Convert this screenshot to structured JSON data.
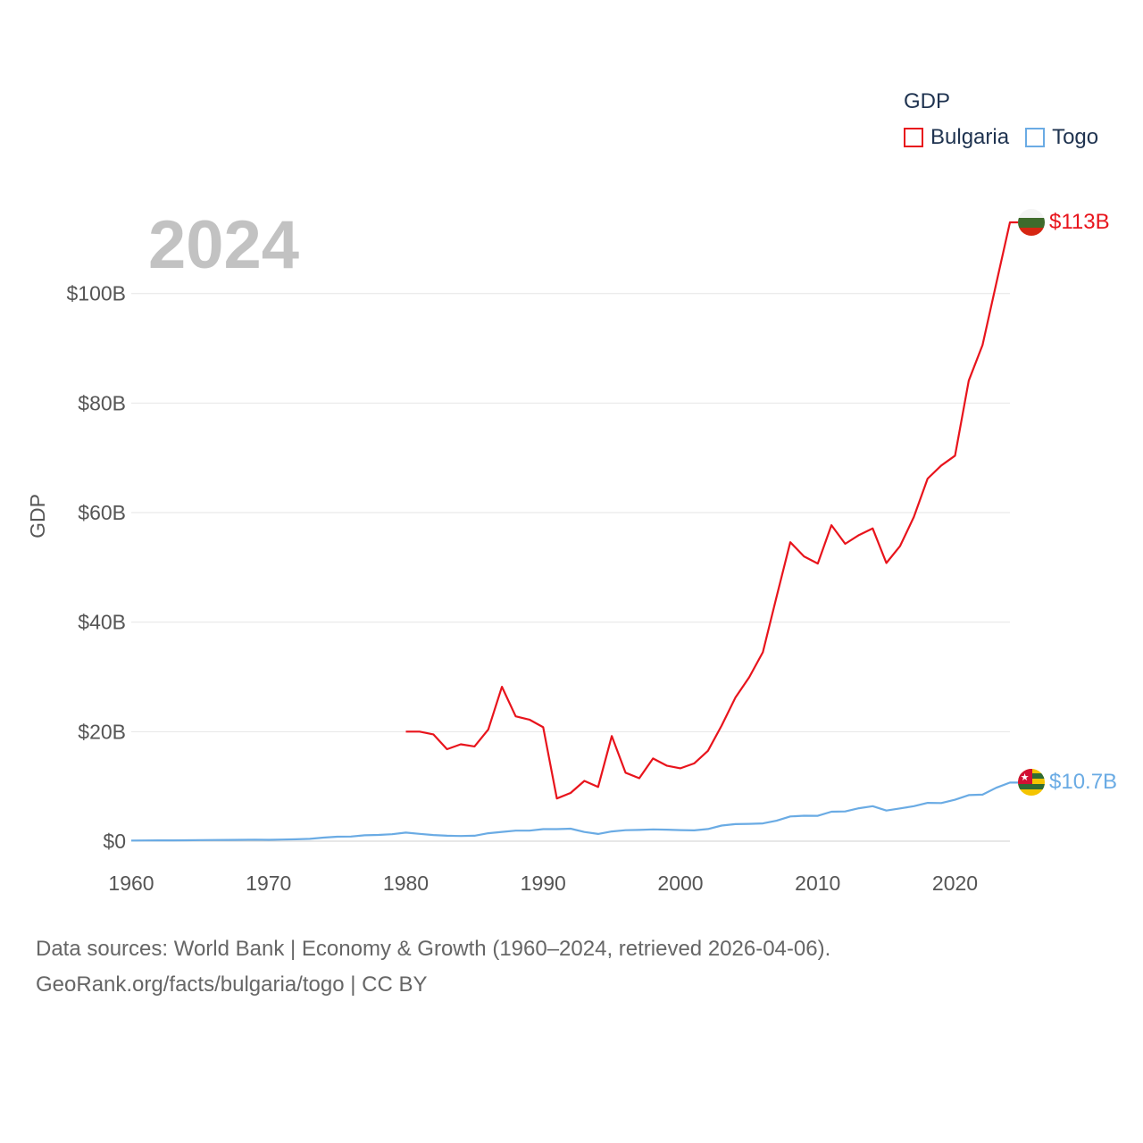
{
  "chart_data": {
    "type": "line",
    "title": "",
    "year_label": "2024",
    "xlabel": "",
    "ylabel": "GDP",
    "xlim": [
      1960,
      2024
    ],
    "ylim": [
      0,
      113
    ],
    "x_ticks": [
      1960,
      1970,
      1980,
      1990,
      2000,
      2010,
      2020
    ],
    "y_ticks": [
      0,
      20,
      40,
      60,
      80,
      100
    ],
    "y_tick_labels": [
      "$0",
      "$20B",
      "$40B",
      "$60B",
      "$80B",
      "$100B"
    ],
    "unit": "billion USD",
    "legend": {
      "title": "GDP",
      "placement": "top-right"
    },
    "series": [
      {
        "name": "Bulgaria",
        "color": "#e8141c",
        "end_label": "$113B",
        "flag_icon": "bulgaria-flag-icon",
        "x": [
          1980,
          1981,
          1982,
          1983,
          1984,
          1985,
          1986,
          1987,
          1988,
          1989,
          1990,
          1991,
          1992,
          1993,
          1994,
          1995,
          1996,
          1997,
          1998,
          1999,
          2000,
          2001,
          2002,
          2003,
          2004,
          2005,
          2006,
          2007,
          2008,
          2009,
          2010,
          2011,
          2012,
          2013,
          2014,
          2015,
          2016,
          2017,
          2018,
          2019,
          2020,
          2021,
          2022,
          2023,
          2024
        ],
        "values": [
          20.0,
          20.0,
          19.5,
          16.8,
          17.7,
          17.3,
          20.4,
          28.2,
          22.8,
          22.2,
          20.8,
          7.8,
          8.8,
          11.0,
          9.9,
          19.2,
          12.5,
          11.5,
          15.1,
          13.8,
          13.3,
          14.2,
          16.5,
          21.1,
          26.2,
          29.9,
          34.5,
          44.6,
          54.6,
          52.0,
          50.7,
          57.7,
          54.3,
          55.9,
          57.1,
          50.8,
          53.9,
          59.2,
          66.2,
          68.6,
          70.4,
          84.1,
          90.6,
          101.8,
          113.0
        ]
      },
      {
        "name": "Togo",
        "color": "#6aabe4",
        "end_label": "$10.7B",
        "flag_icon": "togo-flag-icon",
        "x": [
          1960,
          1961,
          1962,
          1963,
          1964,
          1965,
          1966,
          1967,
          1968,
          1969,
          1970,
          1971,
          1972,
          1973,
          1974,
          1975,
          1976,
          1977,
          1978,
          1979,
          1980,
          1981,
          1982,
          1983,
          1984,
          1985,
          1986,
          1987,
          1988,
          1989,
          1990,
          1991,
          1992,
          1993,
          1994,
          1995,
          1996,
          1997,
          1998,
          1999,
          2000,
          2001,
          2002,
          2003,
          2004,
          2005,
          2006,
          2007,
          2008,
          2009,
          2010,
          2011,
          2012,
          2013,
          2014,
          2015,
          2016,
          2017,
          2018,
          2019,
          2020,
          2021,
          2022,
          2023,
          2024
        ],
        "values": [
          0.12,
          0.13,
          0.14,
          0.15,
          0.17,
          0.19,
          0.21,
          0.23,
          0.25,
          0.27,
          0.25,
          0.29,
          0.35,
          0.42,
          0.65,
          0.81,
          0.85,
          1.08,
          1.14,
          1.27,
          1.57,
          1.34,
          1.12,
          1.0,
          0.95,
          1.0,
          1.45,
          1.7,
          1.92,
          1.93,
          2.2,
          2.2,
          2.28,
          1.68,
          1.32,
          1.78,
          2.0,
          2.06,
          2.16,
          2.11,
          2.02,
          1.97,
          2.21,
          2.86,
          3.11,
          3.16,
          3.24,
          3.73,
          4.51,
          4.64,
          4.63,
          5.38,
          5.43,
          6.02,
          6.4,
          5.6,
          5.98,
          6.39,
          7.0,
          6.96,
          7.57,
          8.41,
          8.5,
          9.75,
          10.7
        ]
      }
    ]
  },
  "footer": {
    "line1": "Data sources: World Bank | Economy & Growth (1960–2024, retrieved 2026-04-06).",
    "line2": "GeoRank.org/facts/bulgaria/togo | CC BY"
  }
}
